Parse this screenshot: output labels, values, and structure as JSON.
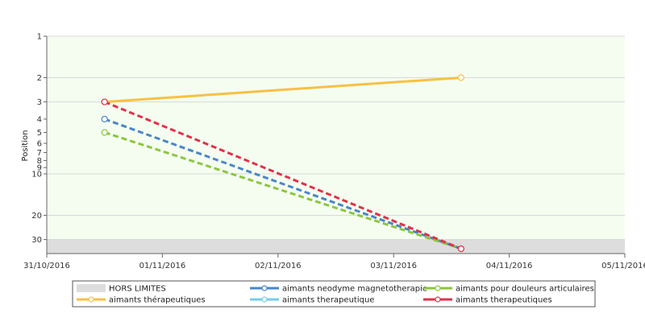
{
  "colors": {
    "plot_bg": "#f4fdf0",
    "hors_band": "#dddddd",
    "grid": "#d9d9d9",
    "axis": "#666666"
  },
  "chart_data": {
    "type": "line",
    "ylabel": "Position",
    "y_scale": "log",
    "y_reversed": true,
    "ylim": [
      1,
      35
    ],
    "yticks": [
      {
        "v": 1,
        "label": "1"
      },
      {
        "v": 2,
        "label": "2"
      },
      {
        "v": 3,
        "label": "3"
      },
      {
        "v": 4,
        "label": "4"
      },
      {
        "v": 5,
        "label": "5"
      },
      {
        "v": 6,
        "label": "6"
      },
      {
        "v": 7,
        "label": "7"
      },
      {
        "v": 8,
        "label": "8"
      },
      {
        "v": 9,
        "label": "9"
      },
      {
        "v": 10,
        "label": "10"
      },
      {
        "v": 20,
        "label": "20"
      },
      {
        "v": 30,
        "label": "30"
      }
    ],
    "xticks": [
      "31/10/2016",
      "01/11/2016",
      "02/11/2016",
      "03/11/2016",
      "04/11/2016",
      "05/11/2016"
    ],
    "xlim": [
      "2016-10-31",
      "2016-11-05"
    ],
    "hors_limites_from": 30,
    "series": [
      {
        "name": "HORS LIMITES",
        "color": "#dddddd",
        "legend_kind": "band",
        "points": []
      },
      {
        "name": "aimants neodyme magnetotherapie",
        "color": "#4a86c8",
        "dash": true,
        "points": [
          {
            "x": "2016-10-31T12:00",
            "y": 4
          },
          {
            "x": "2016-11-03T14:00",
            "y": 35
          }
        ]
      },
      {
        "name": "aimants pour douleurs articulaires",
        "color": "#8cc63f",
        "dash": true,
        "points": [
          {
            "x": "2016-10-31T12:00",
            "y": 5
          },
          {
            "x": "2016-11-03T14:00",
            "y": 35
          }
        ]
      },
      {
        "name": "aimants thérapeutiques",
        "color": "#f7c143",
        "dash": false,
        "points": [
          {
            "x": "2016-10-31T12:00",
            "y": 3
          },
          {
            "x": "2016-11-03T14:00",
            "y": 2
          }
        ]
      },
      {
        "name": "aimants therapeutique",
        "color": "#74cde8",
        "dash": false,
        "points": []
      },
      {
        "name": "aimants therapeutiques",
        "color": "#e0324a",
        "dash": true,
        "points": [
          {
            "x": "2016-10-31T12:00",
            "y": 3
          },
          {
            "x": "2016-11-03T14:00",
            "y": 35
          }
        ]
      }
    ]
  }
}
